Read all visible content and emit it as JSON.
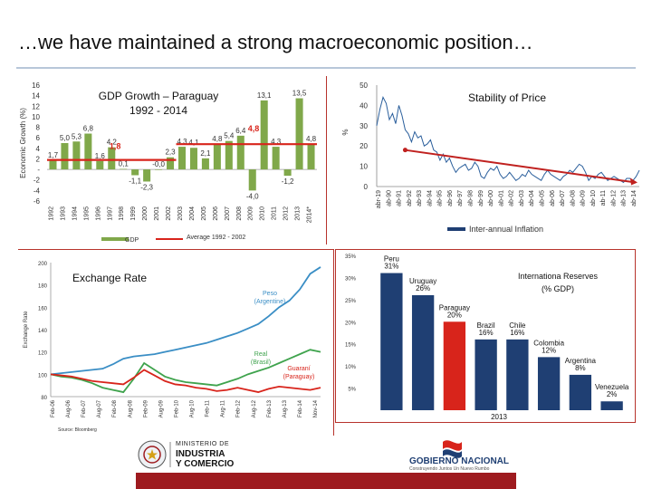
{
  "slide": {
    "title": "…we have maintained a strong macroeconomic position…"
  },
  "colors": {
    "bar_green": "#80a84a",
    "avg_red": "#d8241b",
    "line_blue": "#2b5f9c",
    "reserve_blue": "#1f3f73",
    "paraguay_red": "#d8241b",
    "footer_red": "#9e1b1f"
  },
  "chart_data": [
    {
      "type": "bar",
      "title": "GDP Growth – Paraguay\n1992 - 2014",
      "ylabel": "Economic Growth (%)",
      "ylim": [
        -6,
        16
      ],
      "yticks": [
        "16",
        "14",
        "12",
        "10",
        "8",
        "6",
        "4",
        "2",
        "-",
        "-2",
        "-4",
        "-6"
      ],
      "categories": [
        "1992",
        "1993",
        "1994",
        "1995",
        "1996",
        "1997",
        "1998",
        "1999",
        "2000",
        "2001",
        "2002",
        "2003",
        "2004",
        "2005",
        "2006",
        "2007",
        "2008",
        "2009",
        "2010",
        "2011",
        "2012",
        "2013",
        "2014*"
      ],
      "values": [
        1.7,
        5.0,
        5.3,
        6.8,
        1.6,
        4.2,
        0.1,
        -1.1,
        -2.3,
        0.0,
        2.3,
        4.3,
        4.1,
        2.1,
        4.8,
        5.4,
        6.4,
        -4.0,
        13.1,
        4.3,
        -1.2,
        13.5,
        4.8
      ],
      "data_labels": [
        "1,7",
        "5,0",
        "5,3",
        "6,8",
        "1,6",
        "4,2",
        "0,1",
        "-1,1",
        "-2,3",
        "-0,0",
        "2,3",
        "4,3",
        "4,1",
        "2,1",
        "4,8",
        "5,4",
        "6,4",
        "-4,0",
        "13,1",
        "4,3",
        "-1,2",
        "13,5",
        "4,8"
      ],
      "average": {
        "value": 1.8,
        "label": "1,8",
        "label2": "4,8"
      },
      "legend": [
        {
          "name": "GDP"
        },
        {
          "name": "Average 1992 - 2002"
        }
      ]
    },
    {
      "type": "line",
      "title": "Stability of Price",
      "ylabel": "%",
      "ylim": [
        0,
        50
      ],
      "yticks": [
        "50",
        "40",
        "30",
        "20",
        "10",
        "0"
      ],
      "xticks": [
        "abr-19",
        "ab-90",
        "ab-91",
        "ab-92",
        "ab-93",
        "ab-94",
        "ab-95",
        "ab-96",
        "ab-97",
        "ab-98",
        "ab-99",
        "ab-00",
        "ab-01",
        "ab-02",
        "ab-03",
        "ab-04",
        "ab-05",
        "ab-06",
        "ab-07",
        "ab-08",
        "ab-09",
        "ab-10",
        "ab-11",
        "ab-12",
        "ab-13",
        "ab-14"
      ],
      "series": [
        {
          "name": "Inter-annual Inflation",
          "values": [
            30,
            38,
            44,
            41,
            33,
            36,
            31,
            40,
            35,
            28,
            26,
            22,
            27,
            24,
            25,
            20,
            21,
            23,
            18,
            17,
            13,
            16,
            12,
            14,
            10,
            7,
            9,
            10,
            11,
            8,
            9,
            12,
            10,
            5,
            4,
            7,
            9,
            8,
            10,
            6,
            4,
            5,
            7,
            5,
            3,
            4,
            6,
            5,
            8,
            6,
            5,
            4,
            3,
            6,
            8,
            6,
            5,
            4,
            3,
            5,
            6,
            8,
            7,
            9,
            11,
            10,
            7,
            3,
            5,
            4,
            6,
            7,
            5,
            3,
            4,
            5,
            4,
            3,
            2,
            4,
            4,
            3,
            5,
            8
          ]
        }
      ],
      "trend": {
        "start": 18,
        "end": 2
      }
    },
    {
      "type": "line",
      "title": "Exchange Rate",
      "ylabel": "Exchange Rate",
      "ylim": [
        80,
        200
      ],
      "yticks": [
        "200",
        "180",
        "160",
        "140",
        "120",
        "100",
        "80"
      ],
      "xticks": [
        "Feb-06",
        "Aug-06",
        "Feb-07",
        "Aug-07",
        "Feb-08",
        "Aug-08",
        "Feb-09",
        "Aug-09",
        "Feb-10",
        "Aug-10",
        "Feb-11",
        "Aug-11",
        "Feb-12",
        "Aug-12",
        "Feb-13",
        "Aug-13",
        "Feb-14",
        "Nov-14"
      ],
      "series": [
        {
          "name": "Peso (Argentine)",
          "values": [
            100,
            101,
            102,
            103,
            104,
            105,
            109,
            114,
            116,
            117,
            118,
            120,
            122,
            124,
            126,
            128,
            131,
            134,
            137,
            141,
            145,
            152,
            160,
            166,
            176,
            190,
            196
          ]
        },
        {
          "name": "Real (Brasil)",
          "values": [
            100,
            98,
            97,
            95,
            92,
            88,
            86,
            84,
            96,
            110,
            104,
            98,
            95,
            93,
            92,
            91,
            90,
            93,
            96,
            100,
            103,
            106,
            110,
            114,
            118,
            122,
            120
          ]
        },
        {
          "name": "Guarani (Paraguay)",
          "values": [
            100,
            99,
            98,
            96,
            94,
            93,
            92,
            91,
            97,
            104,
            99,
            94,
            91,
            90,
            88,
            87,
            85,
            86,
            88,
            86,
            84,
            87,
            89,
            88,
            87,
            86,
            88
          ]
        }
      ],
      "series_labels": [
        {
          "line1": "Peso",
          "line2": "(Argentine)"
        },
        {
          "line1": "Real",
          "line2": "(Brasil)"
        },
        {
          "line1": "Guaraní",
          "line2": "(Paraguay)"
        }
      ],
      "source": "Source: Bloomberg"
    },
    {
      "type": "bar",
      "title": "Internationa Reserves\n(% GDP)",
      "ylim": [
        0,
        35
      ],
      "yticks": [
        "35%",
        "30%",
        "25%",
        "20%",
        "15%",
        "10%",
        "5%"
      ],
      "xlabel": "2013",
      "categories": [
        "Peru",
        "Uruguay",
        "Paraguay",
        "Brazil",
        "Chile",
        "Colombia",
        "Argentina",
        "Venezuela"
      ],
      "values": [
        31,
        26,
        20,
        16,
        16,
        12,
        8,
        2
      ],
      "data_labels": [
        "31%",
        "26%",
        "20%",
        "16%",
        "16%",
        "12%",
        "8%",
        "2%"
      ]
    }
  ],
  "logos": {
    "ministry": {
      "line1": "MINISTERIO DE",
      "line2": "INDUSTRIA",
      "line3": "Y COMERCIO"
    },
    "government": {
      "name": "GOBIERNO NACIONAL",
      "tagline": "Construyendo Juntos Un Nuevo Rumbo"
    }
  }
}
